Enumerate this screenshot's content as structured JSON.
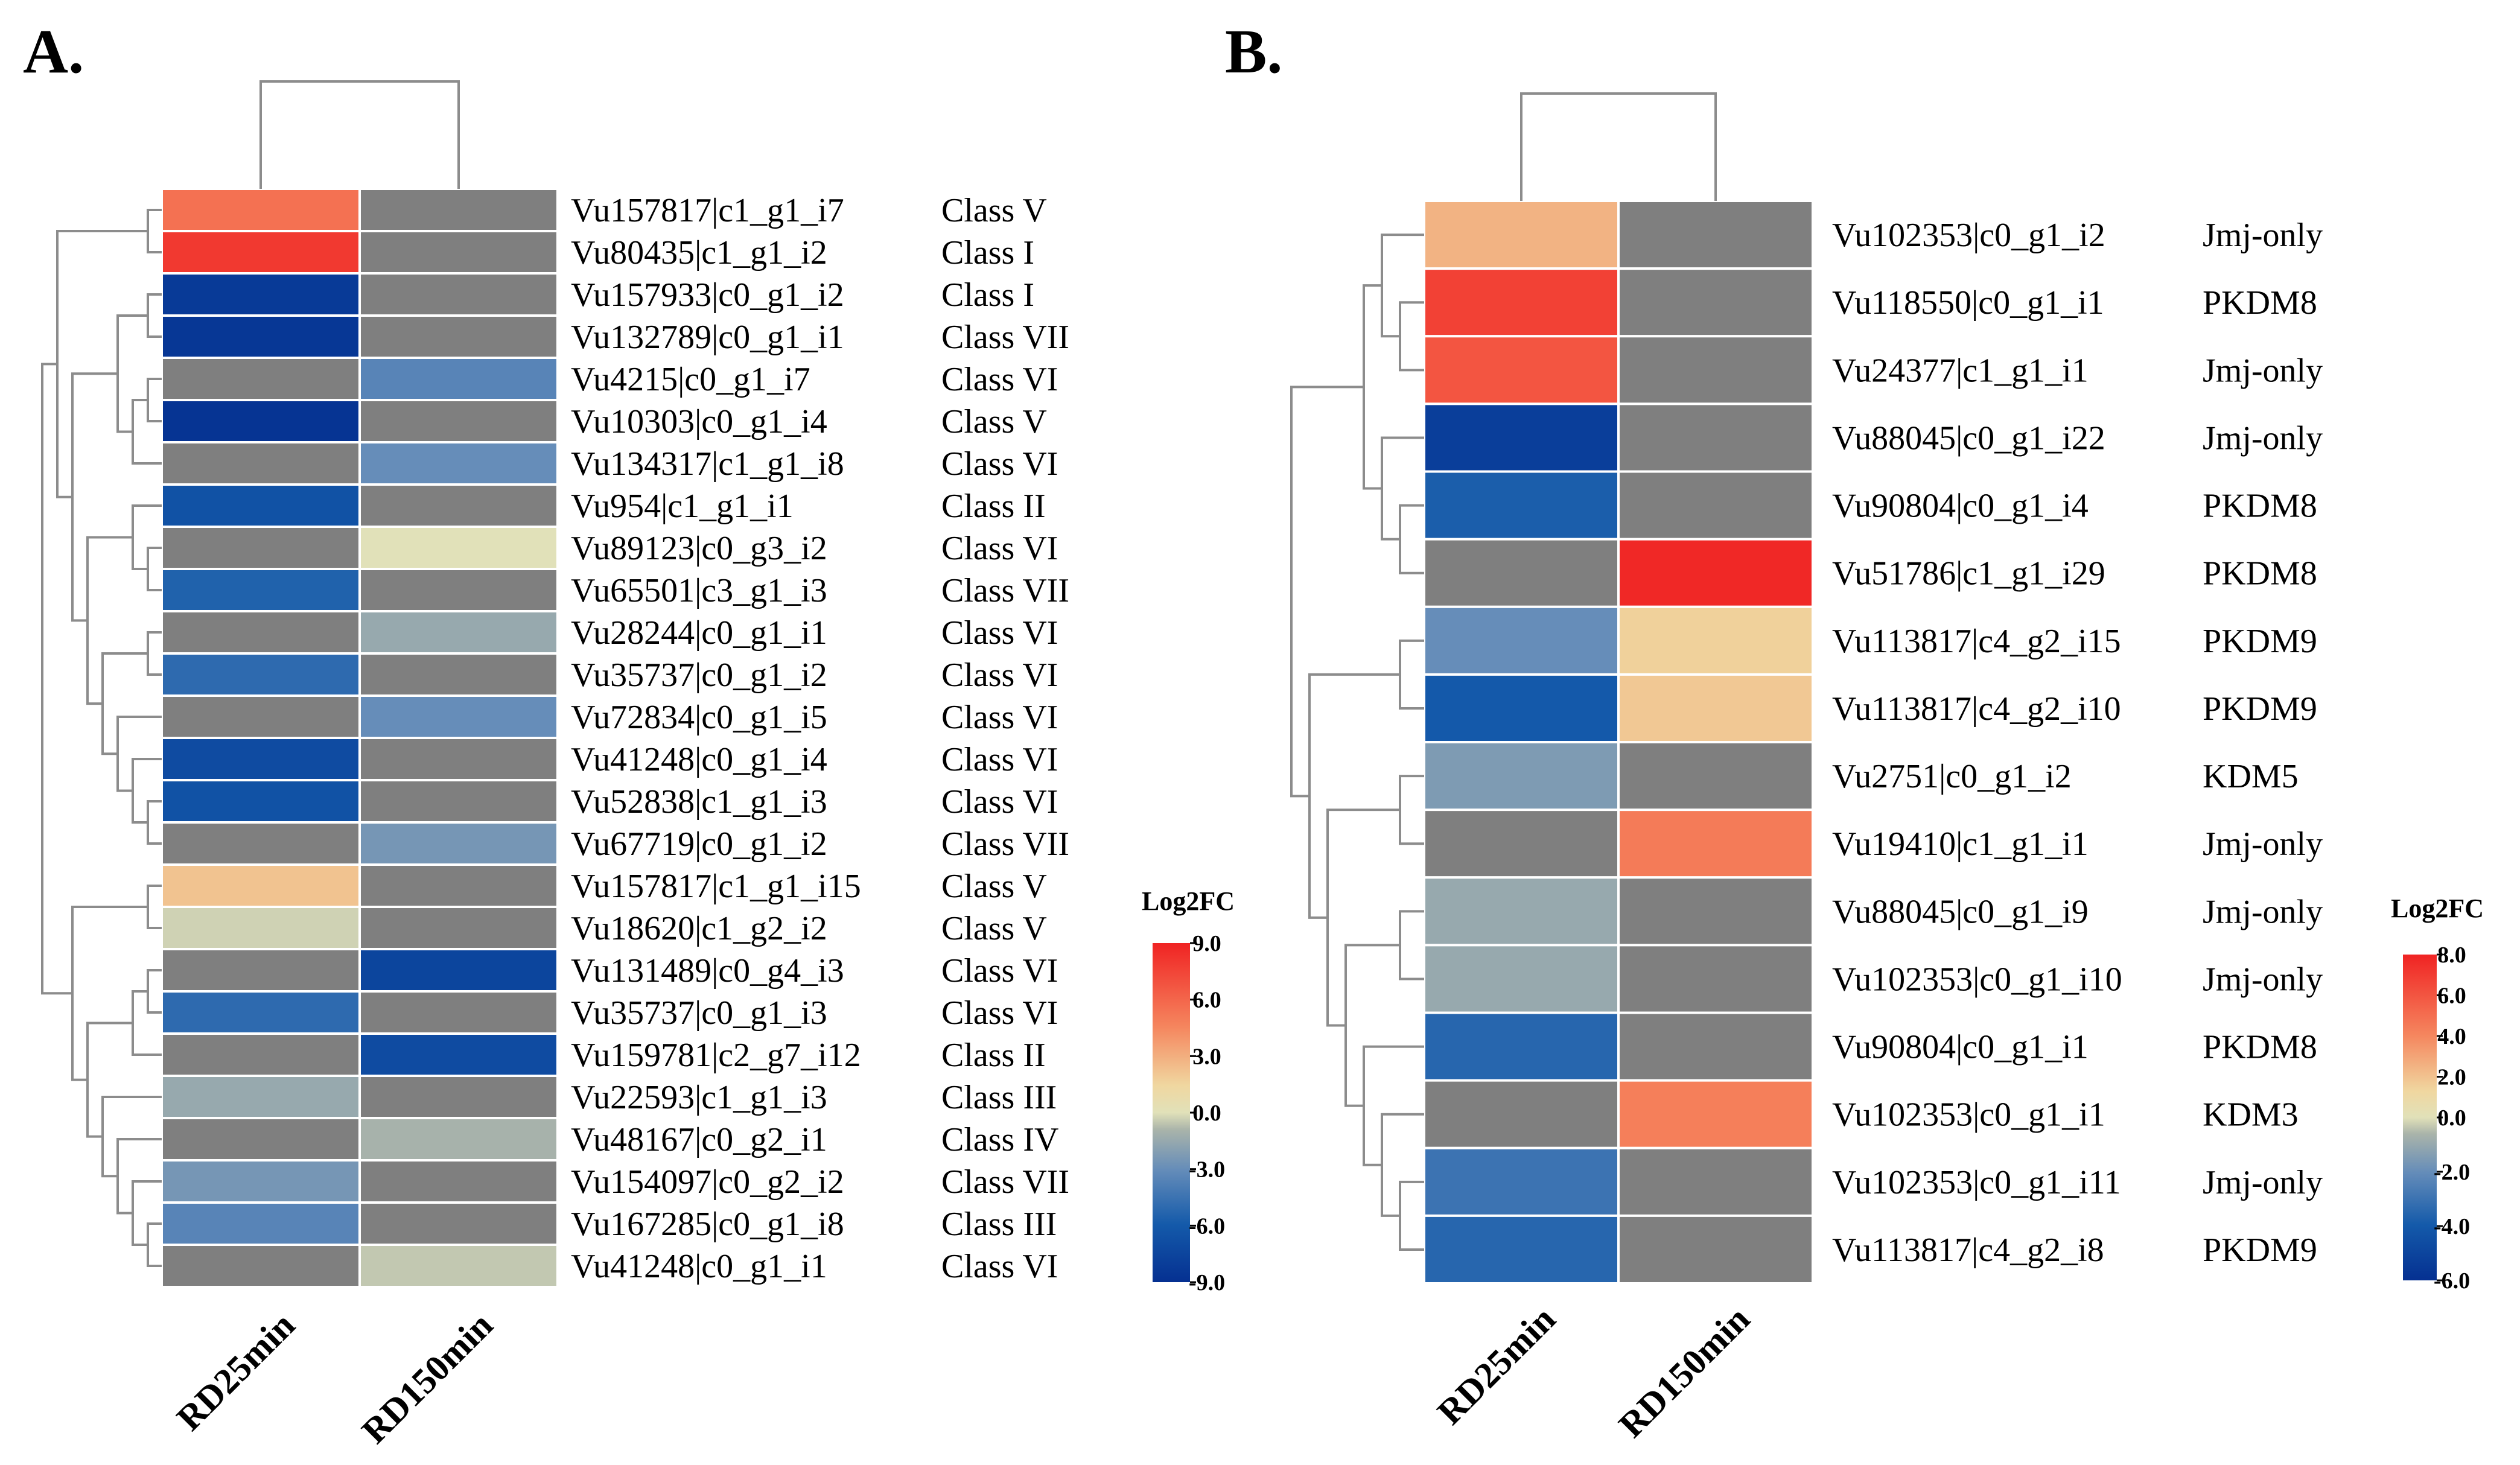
{
  "chart_data": [
    {
      "type": "heatmap",
      "panel_label": "A.",
      "columns": [
        "RD25min",
        "RD150min"
      ],
      "legend": {
        "title": "Log2FC",
        "ticks": [
          "9.0",
          "6.0",
          "3.0",
          "0.0",
          "-3.0",
          "-6.0",
          "-9.0"
        ],
        "range": [
          -9,
          9
        ]
      },
      "rows": [
        {
          "gene": "Vu157817|c1_g1_i7",
          "class": "Class V",
          "values": [
            5.5,
            null
          ]
        },
        {
          "gene": "Vu80435|c1_g1_i2",
          "class": "Class I",
          "values": [
            8.0,
            null
          ]
        },
        {
          "gene": "Vu157933|c0_g1_i2",
          "class": "Class I",
          "values": [
            -8.3,
            null
          ]
        },
        {
          "gene": "Vu132789|c0_g1_i1",
          "class": "Class VII",
          "values": [
            -8.5,
            null
          ]
        },
        {
          "gene": "Vu4215|c0_g1_i7",
          "class": "Class VI",
          "values": [
            null,
            -3.5
          ]
        },
        {
          "gene": "Vu10303|c0_g1_i4",
          "class": "Class V",
          "values": [
            -8.7,
            null
          ]
        },
        {
          "gene": "Vu134317|c1_g1_i8",
          "class": "Class VI",
          "values": [
            null,
            -3.0
          ]
        },
        {
          "gene": "Vu954|c1_g1_i1",
          "class": "Class II",
          "values": [
            -6.5,
            null
          ]
        },
        {
          "gene": "Vu89123|c0_g3_i2",
          "class": "Class VI",
          "values": [
            null,
            0.0
          ]
        },
        {
          "gene": "Vu65501|c3_g1_i3",
          "class": "Class VII",
          "values": [
            -5.5,
            null
          ]
        },
        {
          "gene": "Vu28244|c0_g1_i1",
          "class": "Class VI",
          "values": [
            null,
            -1.5
          ]
        },
        {
          "gene": "Vu35737|c0_g1_i2",
          "class": "Class VI",
          "values": [
            -5.0,
            null
          ]
        },
        {
          "gene": "Vu72834|c0_g1_i5",
          "class": "Class VI",
          "values": [
            null,
            -3.0
          ]
        },
        {
          "gene": "Vu41248|c0_g1_i4",
          "class": "Class VI",
          "values": [
            -7.0,
            null
          ]
        },
        {
          "gene": "Vu52838|c1_g1_i3",
          "class": "Class VI",
          "values": [
            -6.5,
            null
          ]
        },
        {
          "gene": "Vu67719|c0_g1_i2",
          "class": "Class VII",
          "values": [
            null,
            -2.5
          ]
        },
        {
          "gene": "Vu157817|c1_g1_i15",
          "class": "Class V",
          "values": [
            2.2,
            null
          ]
        },
        {
          "gene": "Vu18620|c1_g2_i2",
          "class": "Class V",
          "values": [
            -0.3,
            null
          ]
        },
        {
          "gene": "Vu131489|c0_g4_i3",
          "class": "Class VI",
          "values": [
            null,
            -7.5
          ]
        },
        {
          "gene": "Vu35737|c0_g1_i3",
          "class": "Class VI",
          "values": [
            -5.0,
            null
          ]
        },
        {
          "gene": "Vu159781|c2_g7_i12",
          "class": "Class II",
          "values": [
            null,
            -7.0
          ]
        },
        {
          "gene": "Vu22593|c1_g1_i3",
          "class": "Class III",
          "values": [
            -1.5,
            null
          ]
        },
        {
          "gene": "Vu48167|c0_g2_i1",
          "class": "Class IV",
          "values": [
            null,
            -1.0
          ]
        },
        {
          "gene": "Vu154097|c0_g2_i2",
          "class": "Class VII",
          "values": [
            -2.5,
            null
          ]
        },
        {
          "gene": "Vu167285|c0_g1_i8",
          "class": "Class III",
          "values": [
            -3.5,
            null
          ]
        },
        {
          "gene": "Vu41248|c0_g1_i1",
          "class": "Class VI",
          "values": [
            null,
            -0.5
          ]
        }
      ]
    },
    {
      "type": "heatmap",
      "panel_label": "B.",
      "columns": [
        "RD25min",
        "RD150min"
      ],
      "legend": {
        "title": "Log2FC",
        "ticks": [
          "8.0",
          "6.0",
          "4.0",
          "2.0",
          "0.0",
          "-2.0",
          "-4.0",
          "-6.0"
        ],
        "range": [
          -6,
          8
        ]
      },
      "rows": [
        {
          "gene": "Vu102353|c0_g1_i2",
          "class": "Jmj-only",
          "values": [
            2.5,
            null
          ]
        },
        {
          "gene": "Vu118550|c0_g1_i1",
          "class": "PKDM8",
          "values": [
            6.8,
            null
          ]
        },
        {
          "gene": "Vu24377|c1_g1_i1",
          "class": "Jmj-only",
          "values": [
            6.0,
            null
          ]
        },
        {
          "gene": "Vu88045|c0_g1_i22",
          "class": "Jmj-only",
          "values": [
            -5.3,
            null
          ]
        },
        {
          "gene": "Vu90804|c0_g1_i4",
          "class": "PKDM8",
          "values": [
            -3.8,
            null
          ]
        },
        {
          "gene": "Vu51786|c1_g1_i29",
          "class": "PKDM8",
          "values": [
            null,
            7.8
          ]
        },
        {
          "gene": "Vu113817|c4_g2_i15",
          "class": "PKDM9",
          "values": [
            -2.0,
            1.5
          ]
        },
        {
          "gene": "Vu113817|c4_g2_i10",
          "class": "PKDM9",
          "values": [
            -4.0,
            1.8
          ]
        },
        {
          "gene": "Vu2751|c0_g1_i2",
          "class": "KDM5",
          "values": [
            -1.5,
            null
          ]
        },
        {
          "gene": "Vu19410|c1_g1_i1",
          "class": "Jmj-only",
          "values": [
            null,
            4.5
          ]
        },
        {
          "gene": "Vu88045|c0_g1_i9",
          "class": "Jmj-only",
          "values": [
            -1.0,
            null
          ]
        },
        {
          "gene": "Vu102353|c0_g1_i10",
          "class": "Jmj-only",
          "values": [
            -1.0,
            null
          ]
        },
        {
          "gene": "Vu90804|c0_g1_i1",
          "class": "PKDM8",
          "values": [
            -3.5,
            null
          ]
        },
        {
          "gene": "Vu102353|c0_g1_i1",
          "class": "KDM3",
          "values": [
            null,
            4.3
          ]
        },
        {
          "gene": "Vu102353|c0_g1_i11",
          "class": "Jmj-only",
          "values": [
            -3.0,
            null
          ]
        },
        {
          "gene": "Vu113817|c4_g2_i8",
          "class": "PKDM9",
          "values": [
            -3.5,
            null
          ]
        }
      ]
    }
  ],
  "colors": {
    "missing": "#7f7f7f",
    "cell_border": "#ffffff",
    "dendrogram": "#8c8c8c"
  }
}
